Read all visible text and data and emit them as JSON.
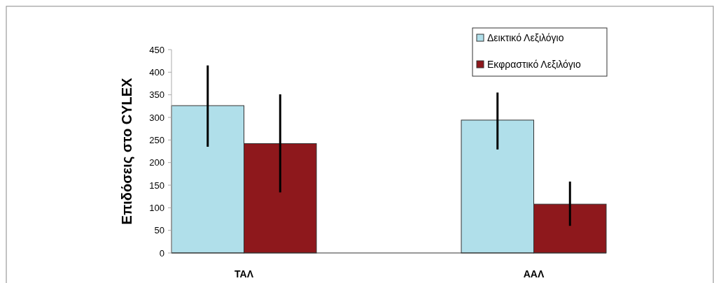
{
  "chart_data": {
    "type": "bar",
    "ylabel": "Επιδόσεις στο CYLEX",
    "categories": [
      "ΤΑΛ",
      "ΑΑΛ"
    ],
    "series": [
      {
        "name": "Δεικτικό Λεξιλόγιο",
        "color": "#b0dfea",
        "values": [
          326,
          294
        ],
        "errors": [
          [
            235,
            415
          ],
          [
            229,
            355
          ]
        ]
      },
      {
        "name": "Εκφραστικό Λεξιλόγιο",
        "color": "#8e181c",
        "values": [
          242,
          108
        ],
        "errors": [
          [
            134,
            351
          ],
          [
            60,
            158
          ]
        ]
      }
    ],
    "ylim": [
      0,
      450
    ],
    "yticks": [
      0,
      50,
      100,
      150,
      200,
      250,
      300,
      350,
      400,
      450
    ],
    "grid": false,
    "legend": "top right"
  }
}
